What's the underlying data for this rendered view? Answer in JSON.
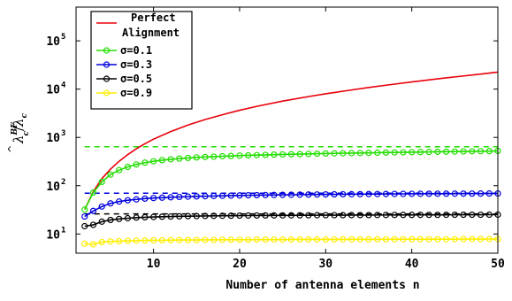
{
  "chart_data": {
    "type": "line",
    "xlabel": "Number of antenna elements n",
    "ylabel": {
      "base": "λ",
      "hat": "^",
      "sup": "BF",
      "sub": "c",
      "slash": "/",
      "base2": "λ",
      "sub2": "c"
    },
    "xlim": [
      1,
      50
    ],
    "ylim": [
      4,
      500000
    ],
    "yscale": "log",
    "x_ticks": [
      10,
      20,
      30,
      40,
      50
    ],
    "y_ticks": [
      {
        "value": 10,
        "base": "10",
        "exp": "1"
      },
      {
        "value": 100,
        "base": "10",
        "exp": "2"
      },
      {
        "value": 1000,
        "base": "10",
        "exp": "3"
      },
      {
        "value": 10000,
        "base": "10",
        "exp": "4"
      },
      {
        "value": 100000,
        "base": "10",
        "exp": "5"
      }
    ],
    "legend": {
      "position": "top-left",
      "entries": [
        {
          "label_lines": [
            "Perfect",
            "Alignment"
          ],
          "color": "#e8000b",
          "marker": false
        },
        {
          "label": "σ=0.1",
          "color": "#22dd00",
          "marker": true
        },
        {
          "label": "σ=0.3",
          "color": "#0000dd",
          "marker": true
        },
        {
          "label": "σ=0.5",
          "color": "#000000",
          "marker": true
        },
        {
          "label": "σ=0.9",
          "color": "#ffee00",
          "marker": true
        }
      ]
    },
    "perfect_alignment": {
      "color": "#e8000b",
      "x": [
        2,
        3,
        4,
        5,
        6,
        7,
        8,
        9,
        10,
        12,
        14,
        16,
        18,
        20,
        22,
        25,
        28,
        30,
        33,
        35,
        38,
        40,
        43,
        45,
        48,
        50
      ],
      "y": [
        32,
        75,
        140,
        220,
        320,
        440,
        580,
        740,
        920,
        1320,
        1800,
        2350,
        2950,
        3650,
        4400,
        5650,
        7000,
        8000,
        9600,
        10800,
        12700,
        14100,
        16300,
        17900,
        20500,
        22500
      ]
    },
    "series": [
      {
        "name": "σ=0.1",
        "color": "#22dd00",
        "asymptote": 640,
        "x": [
          2,
          3,
          4,
          5,
          6,
          7,
          8,
          9,
          10,
          11,
          12,
          13,
          14,
          15,
          16,
          17,
          18,
          19,
          20,
          21,
          22,
          23,
          24,
          25,
          26,
          27,
          28,
          29,
          30,
          31,
          32,
          33,
          34,
          35,
          36,
          37,
          38,
          39,
          40,
          41,
          42,
          43,
          44,
          45,
          46,
          47,
          48,
          49,
          50
        ],
        "y": [
          32,
          72,
          120,
          170,
          210,
          245,
          275,
          300,
          320,
          338,
          352,
          364,
          375,
          385,
          393,
          400,
          407,
          413,
          420,
          425,
          430,
          435,
          440,
          444,
          448,
          452,
          456,
          460,
          464,
          467,
          470,
          473,
          476,
          479,
          482,
          485,
          488,
          491,
          494,
          497,
          500,
          503,
          506,
          509,
          512,
          515,
          518,
          521,
          525
        ]
      },
      {
        "name": "σ=0.3",
        "color": "#0000dd",
        "asymptote": 70,
        "x": [
          2,
          3,
          4,
          5,
          6,
          7,
          8,
          9,
          10,
          11,
          12,
          13,
          14,
          15,
          16,
          17,
          18,
          19,
          20,
          21,
          22,
          23,
          24,
          25,
          26,
          27,
          28,
          29,
          30,
          31,
          32,
          33,
          34,
          35,
          36,
          37,
          38,
          39,
          40,
          41,
          42,
          43,
          44,
          45,
          46,
          47,
          48,
          49,
          50
        ],
        "y": [
          23,
          30,
          37,
          43,
          47,
          50,
          52,
          54,
          55.5,
          56.5,
          57.5,
          58.5,
          59.3,
          60,
          60.6,
          61.2,
          61.8,
          62.3,
          62.8,
          63.2,
          63.6,
          64,
          64.3,
          64.6,
          64.9,
          65.2,
          65.5,
          65.8,
          66,
          66.2,
          66.4,
          66.6,
          66.8,
          67,
          67.2,
          67.4,
          67.5,
          67.7,
          67.8,
          68,
          68.1,
          68.2,
          68.3,
          68.4,
          68.5,
          68.6,
          68.7,
          68.8,
          69
        ]
      },
      {
        "name": "σ=0.5",
        "color": "#000000",
        "asymptote": 26,
        "x": [
          2,
          3,
          4,
          5,
          6,
          7,
          8,
          9,
          10,
          11,
          12,
          13,
          14,
          15,
          16,
          17,
          18,
          19,
          20,
          21,
          22,
          23,
          24,
          25,
          26,
          27,
          28,
          29,
          30,
          31,
          32,
          33,
          34,
          35,
          36,
          37,
          38,
          39,
          40,
          41,
          42,
          43,
          44,
          45,
          46,
          47,
          48,
          49,
          50
        ],
        "y": [
          14.5,
          15.5,
          18,
          19.5,
          20.5,
          21.2,
          21.8,
          22.2,
          22.5,
          22.8,
          23,
          23.2,
          23.4,
          23.5,
          23.6,
          23.7,
          23.8,
          23.9,
          24,
          24.05,
          24.1,
          24.15,
          24.2,
          24.25,
          24.3,
          24.35,
          24.4,
          24.45,
          24.5,
          24.5,
          24.55,
          24.6,
          24.6,
          24.65,
          24.7,
          24.7,
          24.75,
          24.8,
          24.8,
          24.85,
          24.9,
          24.9,
          24.95,
          25,
          25,
          25,
          25.05,
          25.1,
          25.1
        ]
      },
      {
        "name": "σ=0.9",
        "color": "#ffee00",
        "asymptote": null,
        "x": [
          2,
          3,
          4,
          5,
          6,
          7,
          8,
          9,
          10,
          11,
          12,
          13,
          14,
          15,
          16,
          17,
          18,
          19,
          20,
          21,
          22,
          23,
          24,
          25,
          26,
          27,
          28,
          29,
          30,
          31,
          32,
          33,
          34,
          35,
          36,
          37,
          38,
          39,
          40,
          41,
          42,
          43,
          44,
          45,
          46,
          47,
          48,
          49,
          50
        ],
        "y": [
          6.3,
          6.1,
          6.8,
          7,
          7.1,
          7.2,
          7.3,
          7.35,
          7.4,
          7.4,
          7.45,
          7.5,
          7.5,
          7.5,
          7.55,
          7.55,
          7.6,
          7.6,
          7.6,
          7.6,
          7.65,
          7.65,
          7.65,
          7.65,
          7.7,
          7.7,
          7.7,
          7.7,
          7.7,
          7.7,
          7.75,
          7.75,
          7.75,
          7.75,
          7.75,
          7.75,
          7.8,
          7.8,
          7.8,
          7.8,
          7.8,
          7.8,
          7.8,
          7.8,
          7.85,
          7.85,
          7.85,
          7.85,
          7.85
        ]
      }
    ],
    "grid": false
  }
}
